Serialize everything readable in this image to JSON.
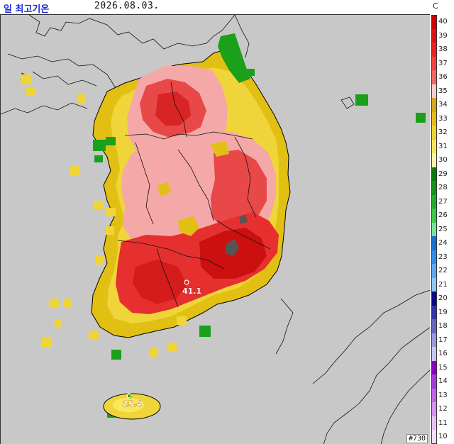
{
  "header": {
    "title": "일 최고기온",
    "date": "2026.08.03.",
    "unit": "C"
  },
  "colors": {
    "sea": "#c8c8c8",
    "land_low": "#f2f0a0",
    "yellow_30": "#f7e95a",
    "gold_33": "#d9b40c",
    "pink_36": "#f4a4a4",
    "red_38": "#e63232",
    "dark_red_40": "#b00000",
    "max_peak": "#555555",
    "green": "#1aa01a"
  },
  "legend": {
    "labels": [
      "40",
      "39",
      "38",
      "37",
      "36",
      "35",
      "34",
      "33",
      "32",
      "31",
      "30",
      "29",
      "28",
      "27",
      "26",
      "25",
      "24",
      "23",
      "22",
      "21",
      "20",
      "19",
      "18",
      "17",
      "16",
      "15",
      "14",
      "13",
      "12",
      "11",
      "10"
    ],
    "colors": [
      "#cc0000",
      "#dd1111",
      "#e62222",
      "#ee4444",
      "#f26666",
      "#f8cccc",
      "#d4a817",
      "#e2bc1f",
      "#ecd233",
      "#f5e45a",
      "#fbf3a8",
      "#0b7a0b",
      "#14931a",
      "#21ad2c",
      "#3cc848",
      "#7ae09c",
      "#1a6fd1",
      "#2f8de6",
      "#5aaaf0",
      "#8cc6f6",
      "#0a0a8a",
      "#3333aa",
      "#6666c3",
      "#9999da",
      "#c5c5ee",
      "#8a00c2",
      "#a63ad6",
      "#bd66e3",
      "#d194ee",
      "#e6c0f7",
      "#f3dcfb"
    ]
  },
  "observations": [
    {
      "label": "41.1"
    },
    {
      "label": "25.4"
    }
  ],
  "footer": {
    "station_id": "#730"
  }
}
